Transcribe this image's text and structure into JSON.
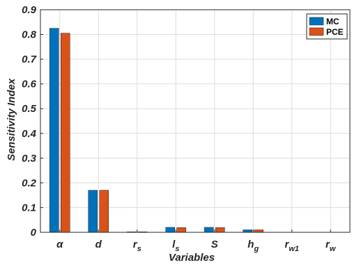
{
  "chart_data": {
    "type": "bar",
    "xlabel": "Variables",
    "ylabel": "Sensitivity Index",
    "ylim": [
      0,
      0.9
    ],
    "yticks": [
      "0",
      "0.1",
      "0.2",
      "0.3",
      "0.4",
      "0.5",
      "0.6",
      "0.7",
      "0.8",
      "0.9"
    ],
    "grid": true,
    "legend_position": "top-right",
    "categories": [
      {
        "base": "α",
        "sub": ""
      },
      {
        "base": "d",
        "sub": ""
      },
      {
        "base": "r",
        "sub": "s"
      },
      {
        "base": "l",
        "sub": "s"
      },
      {
        "base": "S",
        "sub": ""
      },
      {
        "base": "h",
        "sub": "g"
      },
      {
        "base": "r",
        "sub": "w1"
      },
      {
        "base": "r",
        "sub": "w"
      }
    ],
    "series": [
      {
        "name": "MC",
        "color": "#0072BD",
        "values": [
          0.825,
          0.17,
          0.002,
          0.02,
          0.02,
          0.01,
          0.0,
          0.0
        ]
      },
      {
        "name": "PCE",
        "color": "#D95319",
        "values": [
          0.805,
          0.17,
          0.002,
          0.019,
          0.019,
          0.01,
          0.0,
          0.0
        ]
      }
    ]
  }
}
